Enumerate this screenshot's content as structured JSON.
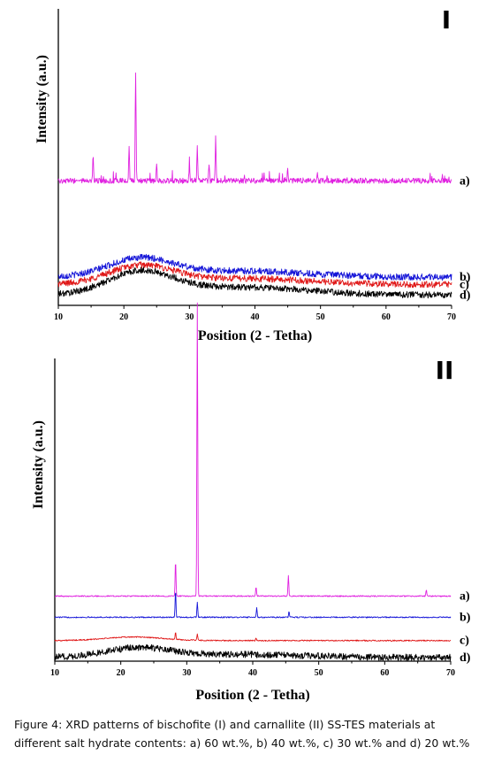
{
  "charts": {
    "chart_data": [
      {
        "type": "line",
        "panel_label": "I",
        "xlabel": "Position (2 - Tetha)",
        "ylabel": "Intensity (a.u.)",
        "xlim": [
          10,
          70
        ],
        "xticks": [
          10,
          20,
          30,
          40,
          50,
          60,
          70
        ],
        "yticks_shown": false,
        "series": [
          {
            "name": "a)",
            "color": "#e020e0",
            "baseline": 0.42,
            "profile": "crystalline",
            "peaks": [
              [
                15.3,
                0.09
              ],
              [
                20.8,
                0.12
              ],
              [
                21.8,
                0.37
              ],
              [
                25.0,
                0.05
              ],
              [
                30.0,
                0.06
              ],
              [
                31.2,
                0.12
              ],
              [
                33.0,
                0.06
              ],
              [
                34.0,
                0.14
              ],
              [
                45.0,
                0.04
              ],
              [
                49.5,
                0.03
              ]
            ]
          },
          {
            "name": "b)",
            "color": "#1515d8",
            "baseline": 0.095,
            "profile": "amorphous",
            "hump": 0.06
          },
          {
            "name": "c)",
            "color": "#e01818",
            "baseline": 0.07,
            "profile": "amorphous",
            "hump": 0.06
          },
          {
            "name": "d)",
            "color": "#000000",
            "baseline": 0.035,
            "profile": "amorphous",
            "hump": 0.075
          }
        ]
      },
      {
        "type": "line",
        "panel_label": "II",
        "xlabel": "Position (2 - Tetha)",
        "ylabel": "Intensity (a.u.)",
        "xlim": [
          10,
          70
        ],
        "xticks": [
          10,
          20,
          30,
          40,
          50,
          60,
          70
        ],
        "yticks_shown": false,
        "series": [
          {
            "name": "a)",
            "color": "#e020e0",
            "baseline": 0.215,
            "profile": "sharp",
            "peaks": [
              [
                28.3,
                0.12
              ],
              [
                31.6,
                0.97
              ],
              [
                40.5,
                0.03
              ],
              [
                45.4,
                0.07
              ],
              [
                66.3,
                0.02
              ]
            ]
          },
          {
            "name": "b)",
            "color": "#1515d8",
            "baseline": 0.145,
            "profile": "sharp",
            "peaks": [
              [
                28.3,
                0.09
              ],
              [
                31.6,
                0.05
              ],
              [
                40.6,
                0.03
              ],
              [
                45.5,
                0.02
              ]
            ]
          },
          {
            "name": "c)",
            "color": "#e01818",
            "baseline": 0.068,
            "profile": "sharp",
            "peaks": [
              [
                28.3,
                0.025
              ],
              [
                31.6,
                0.02
              ],
              [
                40.5,
                0.01
              ]
            ],
            "hump": 0.012
          },
          {
            "name": "d)",
            "color": "#000000",
            "baseline": 0.012,
            "profile": "amorphous",
            "hump": 0.03
          }
        ]
      }
    ]
  },
  "caption": {
    "text": "Figure 4:   XRD patterns of bischofite (I) and carnallite (II) SS-TES materials at different salt hydrate contents: a) 60 wt.%, b) 40 wt.%, c) 30 wt.% and d) 20 wt.%"
  }
}
